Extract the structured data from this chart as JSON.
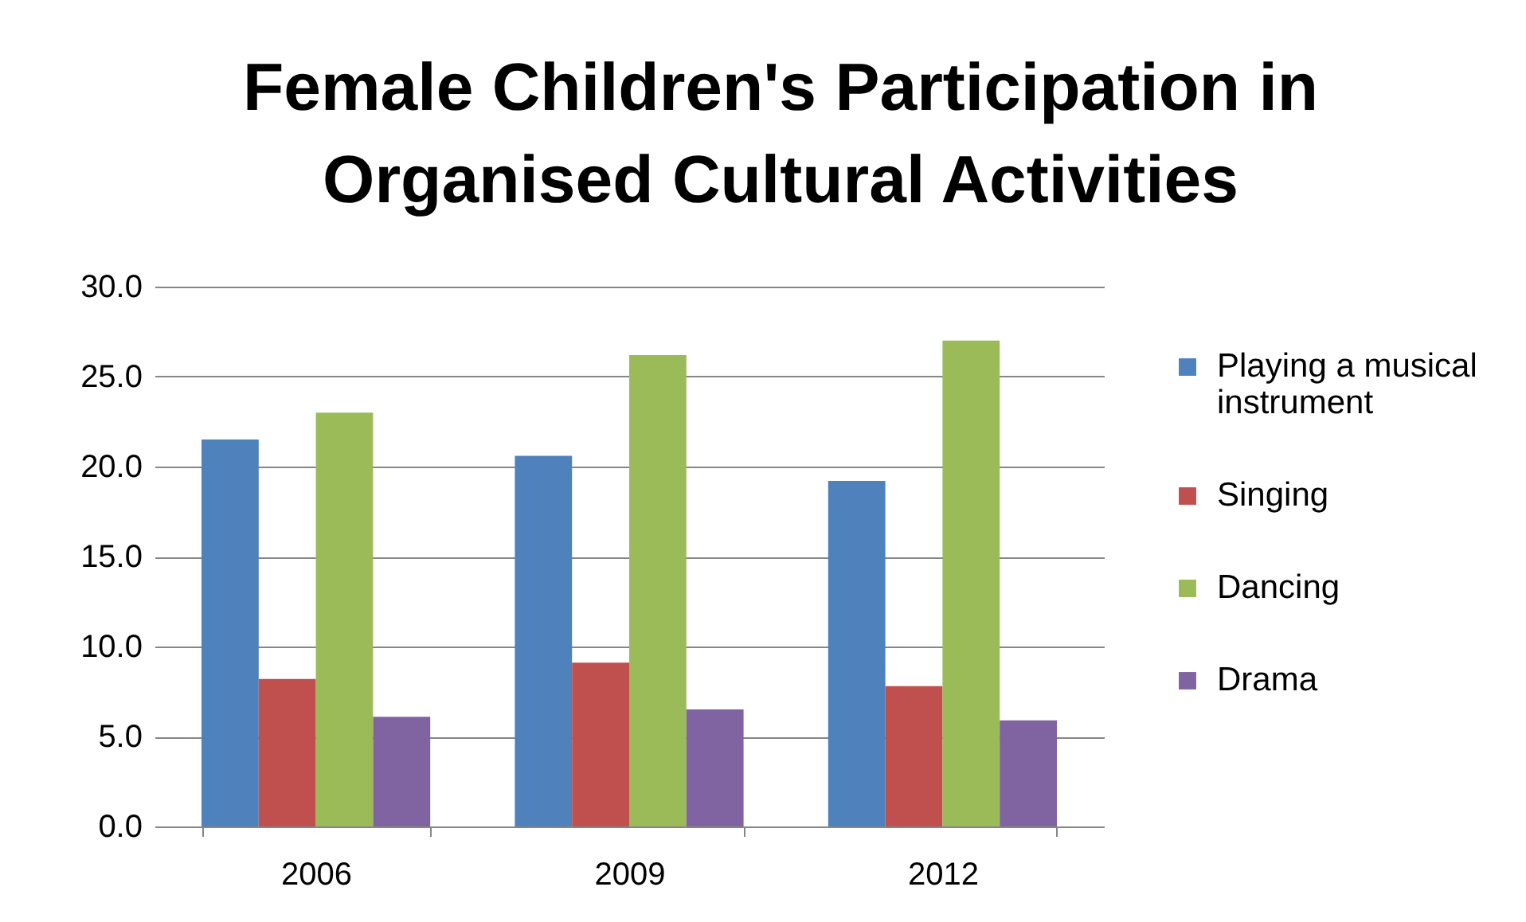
{
  "chart_data": {
    "type": "bar",
    "title": "Female Children's Participation in Organised Cultural Activities",
    "categories": [
      "2006",
      "2009",
      "2012"
    ],
    "series": [
      {
        "name": "Playing a musical instrument",
        "color": "#4f81bd",
        "values": [
          21.5,
          20.6,
          19.2
        ]
      },
      {
        "name": "Singing",
        "color": "#c0504d",
        "values": [
          8.2,
          9.1,
          7.8
        ]
      },
      {
        "name": "Dancing",
        "color": "#9bbb59",
        "values": [
          23.0,
          26.2,
          27.0
        ]
      },
      {
        "name": "Drama",
        "color": "#8064a2",
        "values": [
          6.1,
          6.5,
          5.9
        ]
      }
    ],
    "ylim": [
      0,
      30
    ],
    "yticks": [
      {
        "value": 0,
        "label": "0.0"
      },
      {
        "value": 5,
        "label": "5.0"
      },
      {
        "value": 10,
        "label": "10.0"
      },
      {
        "value": 15,
        "label": "15.0"
      },
      {
        "value": 20,
        "label": "20.0"
      },
      {
        "value": 25,
        "label": "25.0"
      },
      {
        "value": 30,
        "label": "30.0"
      }
    ],
    "grid": "y",
    "legend": "right"
  }
}
